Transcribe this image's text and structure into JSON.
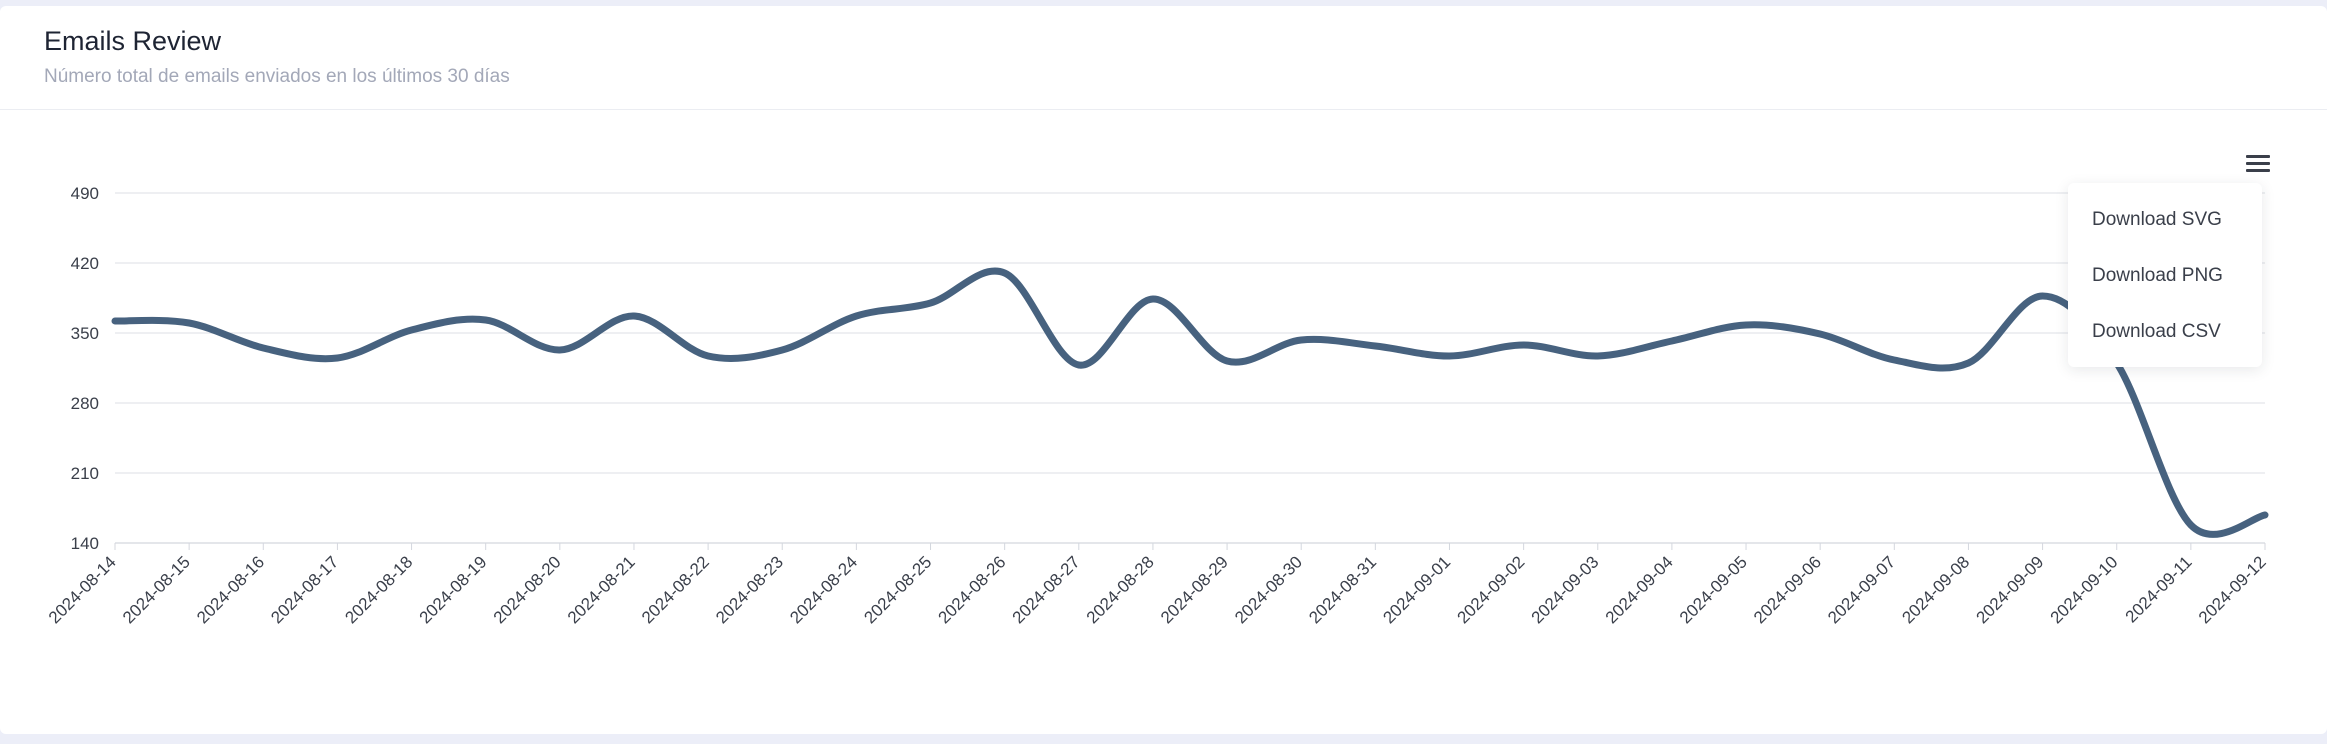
{
  "card": {
    "title": "Emails Review",
    "subtitle": "Número total de emails enviados en los últimos 30 días"
  },
  "menu": {
    "icon": "hamburger-menu-icon",
    "items": [
      {
        "label": "Download SVG"
      },
      {
        "label": "Download PNG"
      },
      {
        "label": "Download CSV"
      }
    ]
  },
  "colors": {
    "line": "#47627f",
    "grid": "#e3e5ea",
    "text": "#3a3f4a"
  },
  "chart_data": {
    "type": "line",
    "title": "",
    "xlabel": "",
    "ylabel": "",
    "ylim": [
      140,
      490
    ],
    "yticks": [
      140,
      210,
      280,
      350,
      420,
      490
    ],
    "grid": true,
    "x": [
      "2024-08-14",
      "2024-08-15",
      "2024-08-16",
      "2024-08-17",
      "2024-08-18",
      "2024-08-19",
      "2024-08-20",
      "2024-08-21",
      "2024-08-22",
      "2024-08-23",
      "2024-08-24",
      "2024-08-25",
      "2024-08-26",
      "2024-08-27",
      "2024-08-28",
      "2024-08-29",
      "2024-08-30",
      "2024-08-31",
      "2024-09-01",
      "2024-09-02",
      "2024-09-03",
      "2024-09-04",
      "2024-09-05",
      "2024-09-06",
      "2024-09-07",
      "2024-09-08",
      "2024-09-09",
      "2024-09-10",
      "2024-09-11",
      "2024-09-12"
    ],
    "series": [
      {
        "values": [
          362,
          360,
          335,
          325,
          353,
          363,
          333,
          367,
          327,
          333,
          367,
          380,
          410,
          318,
          384,
          322,
          343,
          337,
          327,
          338,
          327,
          342,
          358,
          349,
          323,
          320,
          387,
          320,
          158,
          168
        ]
      }
    ]
  }
}
